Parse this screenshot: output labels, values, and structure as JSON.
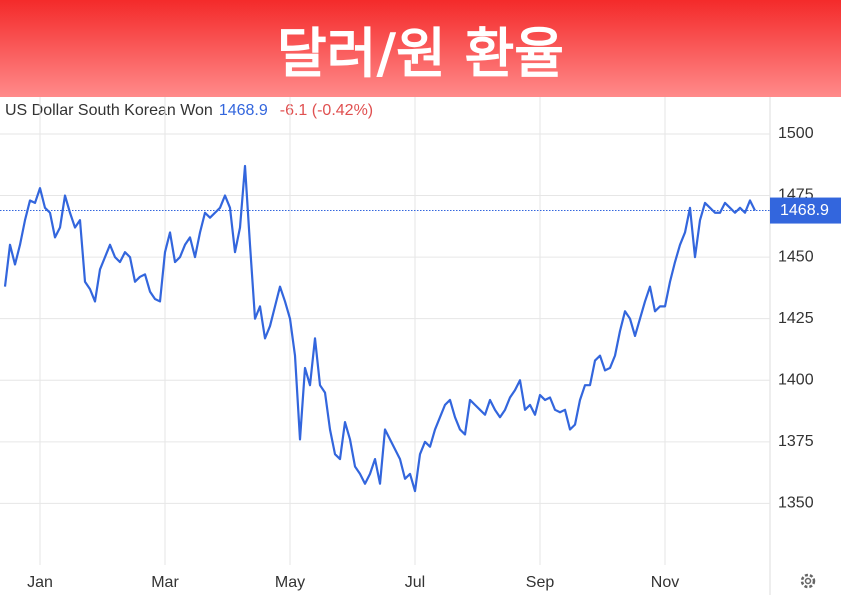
{
  "chart_data": {
    "type": "line",
    "title": "달러/원 환율",
    "price": 1468.9,
    "change": "-6.1 (-0.42%)",
    "categories": [
      null,
      null,
      null,
      null,
      null,
      null,
      null,
      "Jan",
      null,
      null,
      null,
      null,
      null,
      null,
      null,
      null,
      null,
      null,
      null,
      null,
      null,
      null,
      null,
      null,
      null,
      null,
      null,
      null,
      null,
      null,
      null,
      null,
      "Mar",
      null,
      null,
      null,
      null,
      null,
      null,
      null,
      null,
      null,
      null,
      null,
      null,
      null,
      null,
      null,
      null,
      null,
      null,
      null,
      null,
      null,
      null,
      null,
      null,
      "May",
      null,
      null,
      null,
      null,
      null,
      null,
      null,
      null,
      null,
      null,
      null,
      null,
      null,
      null,
      null,
      null,
      null,
      null,
      null,
      null,
      null,
      null,
      null,
      null,
      "Jul",
      null,
      null,
      null,
      null,
      null,
      null,
      null,
      null,
      null,
      null,
      null,
      null,
      null,
      null,
      null,
      null,
      null,
      null,
      null,
      null,
      null,
      null,
      null,
      null,
      "Sep",
      null,
      null,
      null,
      null,
      null,
      null,
      null,
      null,
      null,
      null,
      null,
      null,
      null,
      null,
      null,
      null,
      null,
      null,
      null,
      null,
      null,
      null,
      null,
      null,
      "Nov",
      null,
      null,
      null,
      null,
      null,
      null,
      null,
      null,
      null,
      null,
      null,
      null,
      null,
      null,
      null,
      null,
      null,
      null
    ],
    "series": [
      {
        "name": "US Dollar South Korean Won",
        "color": "#3366dd",
        "values": [
          1438,
          1455,
          1447,
          1455,
          1465,
          1473,
          1472,
          1478,
          1470,
          1468,
          1458,
          1462,
          1475,
          1468,
          1462,
          1465,
          1440,
          1437,
          1432,
          1445,
          1450,
          1455,
          1450,
          1448,
          1452,
          1450,
          1440,
          1442,
          1443,
          1436,
          1433,
          1432,
          1452,
          1460,
          1448,
          1450,
          1455,
          1458,
          1450,
          1460,
          1468,
          1466,
          1468,
          1470,
          1475,
          1470,
          1452,
          1462,
          1487,
          1455,
          1425,
          1430,
          1417,
          1422,
          1430,
          1438,
          1432,
          1425,
          1410,
          1376,
          1405,
          1398,
          1417,
          1398,
          1395,
          1380,
          1370,
          1368,
          1383,
          1376,
          1365,
          1362,
          1358,
          1362,
          1368,
          1358,
          1380,
          1376,
          1372,
          1368,
          1360,
          1362,
          1355,
          1370,
          1375,
          1373,
          1380,
          1385,
          1390,
          1392,
          1385,
          1380,
          1378,
          1392,
          1390,
          1388,
          1386,
          1392,
          1388,
          1385,
          1388,
          1393,
          1396,
          1400,
          1388,
          1390,
          1386,
          1394,
          1392,
          1393,
          1388,
          1387,
          1388,
          1380,
          1382,
          1392,
          1398,
          1398,
          1408,
          1410,
          1404,
          1405,
          1410,
          1420,
          1428,
          1425,
          1418,
          1425,
          1432,
          1438,
          1428,
          1430,
          1430,
          1440,
          1448,
          1455,
          1460,
          1470,
          1450,
          1465,
          1472,
          1470,
          1468,
          1468,
          1472,
          1470,
          1468,
          1470,
          1468,
          1473,
          1468.9
        ]
      }
    ],
    "ylim": [
      1325,
      1515
    ],
    "yticks": [
      1350,
      1375,
      1400,
      1425,
      1450,
      1475,
      1500
    ],
    "grid": true
  }
}
